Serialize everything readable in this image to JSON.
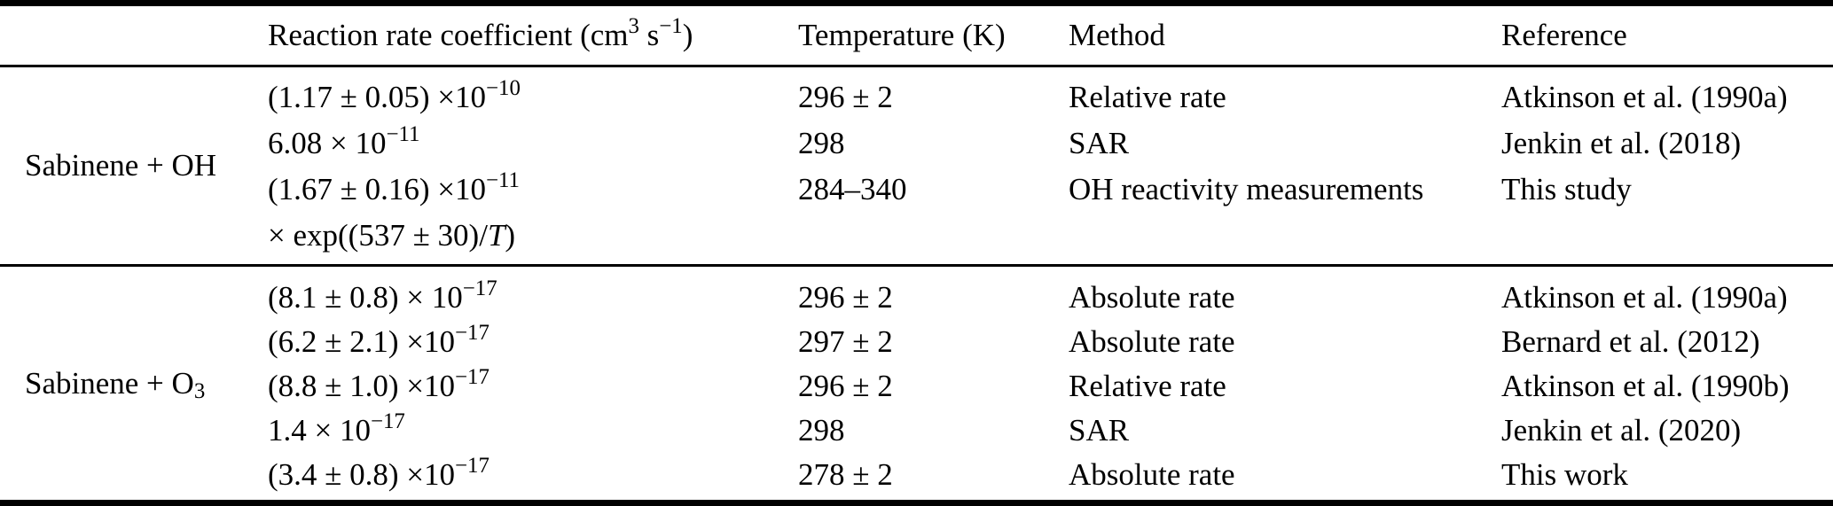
{
  "colors": {
    "text": "#000000",
    "background": "#ffffff",
    "rule": "#000000"
  },
  "header": {
    "reactant": "",
    "rate": {
      "pre": "Reaction rate coefficient (cm",
      "sup1": "3",
      "mid": " s",
      "sup2": "−1",
      "post": ")"
    },
    "temperature": "Temperature (K)",
    "method": "Method",
    "reference": "Reference"
  },
  "groups": [
    {
      "reactant": {
        "base": "Sabinene + OH"
      },
      "rows": [
        {
          "rate": {
            "base": "(1.17 ± 0.05) ×10",
            "exp": "−10"
          },
          "temperature": "296 ± 2",
          "method": "Relative rate",
          "reference": "Atkinson et al. (1990a)"
        },
        {
          "rate": {
            "base": "6.08 × 10",
            "exp": "−11"
          },
          "temperature": "298",
          "method": "SAR",
          "reference": "Jenkin et al. (2018)"
        },
        {
          "rate": {
            "base": "(1.67 ± 0.16) ×10",
            "exp": "−11",
            "line2_pre": "× exp((537 ± 30)/",
            "line2_italic": "T",
            "line2_post": ")"
          },
          "temperature": "284–340",
          "method": "OH reactivity measurements",
          "reference": "This study"
        }
      ]
    },
    {
      "reactant": {
        "base": "Sabinene + O",
        "sub": "3"
      },
      "rows": [
        {
          "rate": {
            "base": "(8.1 ± 0.8) × 10",
            "exp": "−17"
          },
          "temperature": "296 ± 2",
          "method": "Absolute rate",
          "reference": "Atkinson et al. (1990a)"
        },
        {
          "rate": {
            "base": "(6.2 ± 2.1) ×10",
            "exp": "−17"
          },
          "temperature": "297 ± 2",
          "method": "Absolute rate",
          "reference": "Bernard et al. (2012)"
        },
        {
          "rate": {
            "base": "(8.8 ± 1.0) ×10",
            "exp": "−17"
          },
          "temperature": "296 ± 2",
          "method": "Relative rate",
          "reference": "Atkinson et al. (1990b)"
        },
        {
          "rate": {
            "base": "1.4 × 10",
            "exp": "−17"
          },
          "temperature": "298",
          "method": "SAR",
          "reference": "Jenkin et al. (2020)"
        },
        {
          "rate": {
            "base": "(3.4 ± 0.8) ×10",
            "exp": "−17"
          },
          "temperature": "278 ± 2",
          "method": "Absolute rate",
          "reference": "This work"
        }
      ]
    }
  ]
}
